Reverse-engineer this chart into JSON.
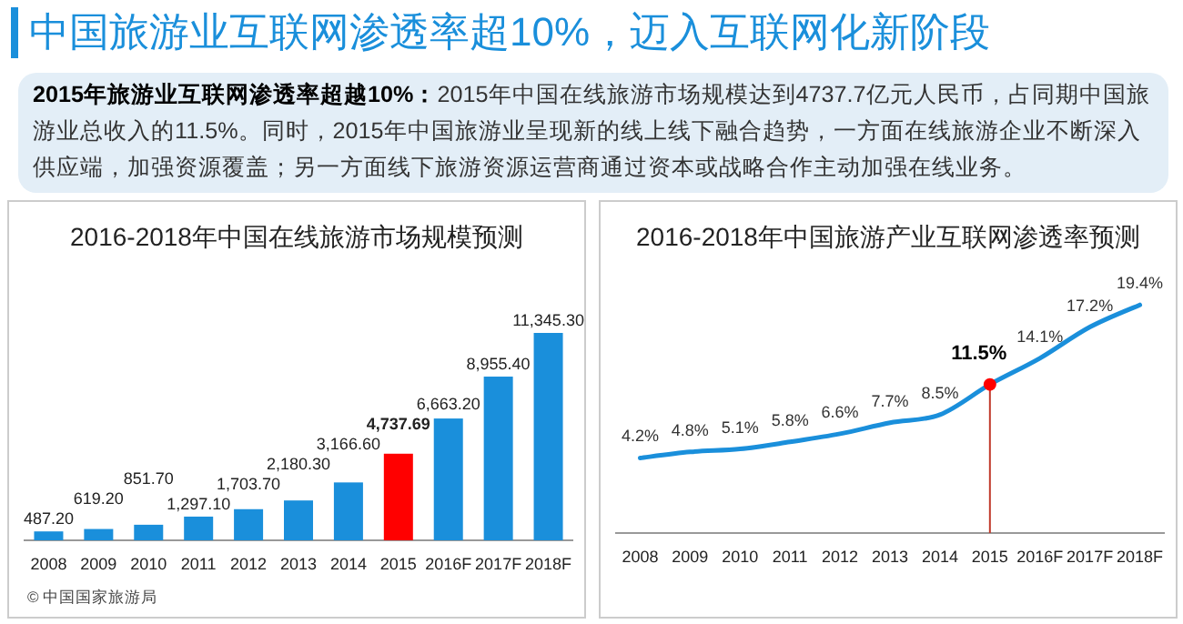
{
  "chart_data": [
    {
      "type": "other",
      "title": "中国旅游业互联网渗透率超10%，迈入互联网化新阶段",
      "annotations": [
        "**2015年旅游业互联网渗透率超越10%：**2015年中国在线旅游市场规模达到4737.7亿元人民币，占同期中国旅游业总收入的11.5%。同时，2015年中国旅游业呈现新的线上线下融合趋势，一方面在线旅游企业不断深入供应端，加强资源覆盖；另一方面线下旅游资源运营商通过资本或战略合作主动加强在线业务。"
      ]
    },
    {
      "type": "bar",
      "title": "2016-2018年中国在线旅游市场规模预测",
      "categories": [
        "2008",
        "2009",
        "2010",
        "2011",
        "2012",
        "2013",
        "2014",
        "2015",
        "2016F",
        "2017F",
        "2018F"
      ],
      "values": [
        487.2,
        619.2,
        851.7,
        1297.1,
        1703.7,
        2180.3,
        3166.6,
        4737.69,
        6663.2,
        8955.4,
        11345.3
      ],
      "colors": [
        "#1a8fdb",
        "#1a8fdb",
        "#1a8fdb",
        "#1a8fdb",
        "#1a8fdb",
        "#1a8fdb",
        "#1a8fdb",
        "#ff0000",
        "#1a8fdb",
        "#1a8fdb",
        "#1a8fdb"
      ],
      "value_labels": [
        "487.20",
        "619.20",
        "851.70",
        "1,297.10",
        "1,703.70",
        "2,180.30",
        "3,166.60",
        "4,737.69",
        "6,663.20",
        "8,955.40",
        "11,345.30"
      ],
      "annotations": [
        "© 中国国家旅游局"
      ]
    },
    {
      "type": "line",
      "title": "2016-2018年中国旅游产业互联网渗透率预测",
      "categories": [
        "2008",
        "2009",
        "2010",
        "2011",
        "2012",
        "2013",
        "2014",
        "2015",
        "2016F",
        "2017F",
        "2018F"
      ],
      "series": [
        {
          "type": "line",
          "color": "#1a8fdb",
          "values": [
            4.2,
            4.8,
            5.1,
            5.8,
            6.6,
            7.7,
            8.5,
            11.5,
            14.1,
            17.2,
            19.4
          ],
          "value_labels": [
            "4.2%",
            "4.8%",
            "5.1%",
            "5.8%",
            "6.6%",
            "7.7%",
            "8.5%",
            null,
            "14.1%",
            "17.2%",
            "19.4%"
          ]
        },
        {
          "type": "scatter",
          "color": "#ff0000",
          "values": [
            null,
            null,
            null,
            null,
            null,
            null,
            null,
            11.5,
            null,
            null,
            null
          ],
          "value_labels": [
            null,
            null,
            null,
            null,
            null,
            null,
            null,
            "11.5%",
            null,
            null,
            null
          ]
        }
      ],
      "ref_lines": [
        {
          "axis": "x",
          "value": "2015",
          "color": "#c0392b"
        }
      ]
    }
  ]
}
